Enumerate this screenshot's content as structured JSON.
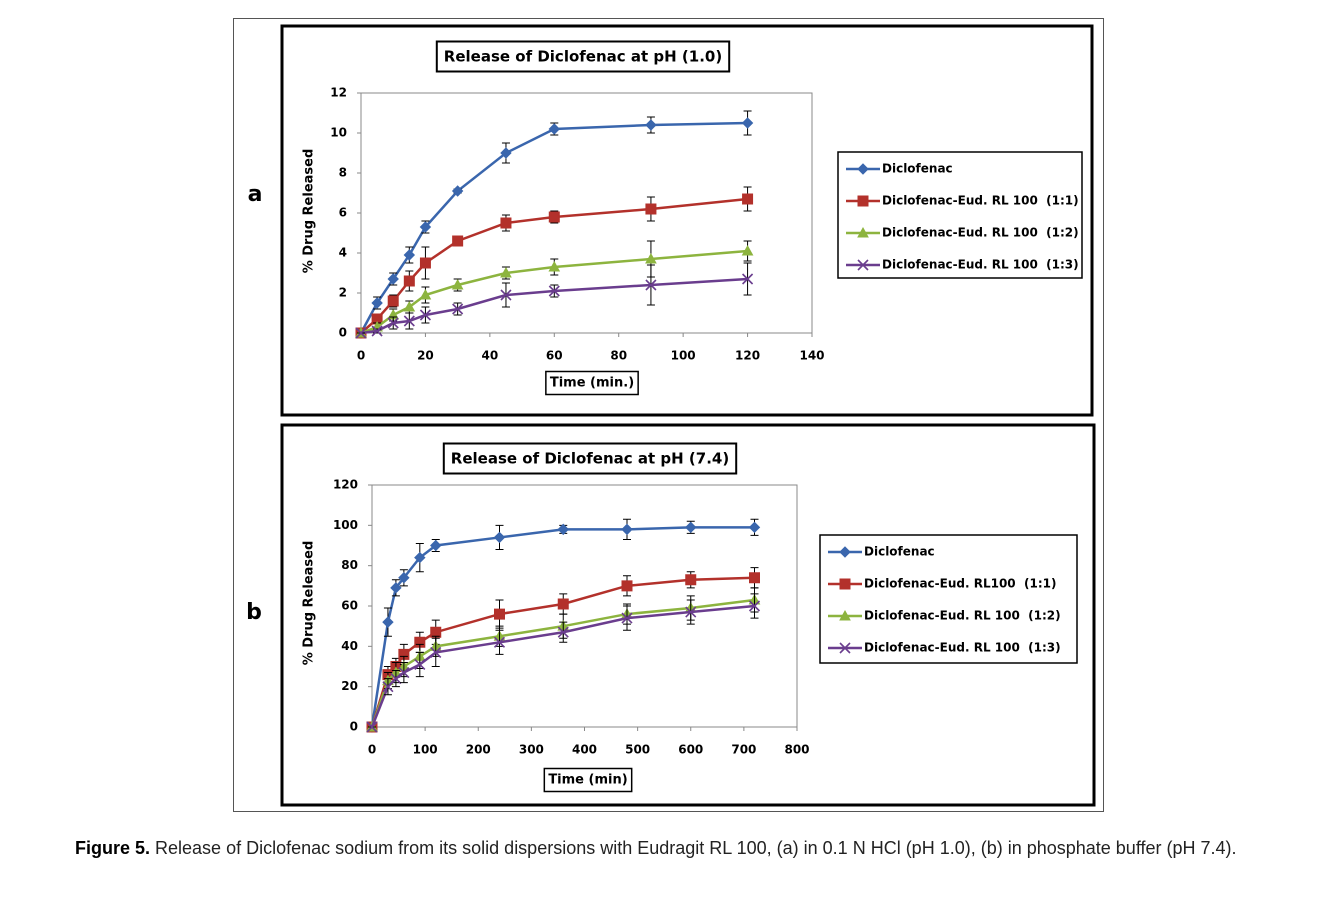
{
  "chart_data": [
    {
      "type": "line",
      "label": "a",
      "title": "Release of Diclofenac at pH (1.0)",
      "xlabel": "Time (min.)",
      "ylabel": "% Drug Released",
      "x": [
        0,
        5,
        10,
        15,
        20,
        30,
        45,
        60,
        90,
        120
      ],
      "xlim": [
        0,
        140
      ],
      "xticks": [
        0,
        20,
        40,
        60,
        80,
        100,
        120,
        140
      ],
      "ylim": [
        0,
        12
      ],
      "yticks": [
        0,
        2,
        4,
        6,
        8,
        10,
        12
      ],
      "grid": false,
      "series": [
        {
          "name": "Diclofenac",
          "color": "#3a66ad",
          "marker": "diamond",
          "values": [
            0,
            1.5,
            2.7,
            3.9,
            5.3,
            7.1,
            9.0,
            10.2,
            10.4,
            10.5
          ],
          "errors": [
            0,
            0.3,
            0.3,
            0.4,
            0.3,
            0.1,
            0.5,
            0.3,
            0.4,
            0.6
          ]
        },
        {
          "name": "Diclofenac-Eud. RL 100  (1:1)",
          "color": "#b3312b",
          "marker": "square",
          "values": [
            0,
            0.7,
            1.6,
            2.6,
            3.5,
            4.6,
            5.5,
            5.8,
            6.2,
            6.7
          ],
          "errors": [
            0,
            0.2,
            0.3,
            0.5,
            0.8,
            0.2,
            0.4,
            0.3,
            0.6,
            0.6
          ]
        },
        {
          "name": "Diclofenac-Eud. RL 100  (1:2)",
          "color": "#8db43f",
          "marker": "triangle",
          "values": [
            0,
            0.3,
            0.9,
            1.3,
            1.9,
            2.4,
            3.0,
            3.3,
            3.7,
            4.1
          ],
          "errors": [
            0,
            0.2,
            0.3,
            0.3,
            0.4,
            0.3,
            0.3,
            0.4,
            0.9,
            0.5
          ]
        },
        {
          "name": "Diclofenac-Eud. RL 100  (1:3)",
          "color": "#6a3d8e",
          "marker": "x",
          "values": [
            0,
            0.1,
            0.5,
            0.6,
            0.9,
            1.2,
            1.9,
            2.1,
            2.4,
            2.7
          ],
          "errors": [
            0,
            0.1,
            0.3,
            0.4,
            0.4,
            0.3,
            0.6,
            0.3,
            1.0,
            0.8
          ]
        }
      ]
    },
    {
      "type": "line",
      "label": "b",
      "title": "Release of Diclofenac at pH (7.4)",
      "xlabel": "Time (min)",
      "ylabel": "% Drug Released",
      "x": [
        0,
        30,
        45,
        60,
        90,
        120,
        240,
        360,
        480,
        600,
        720
      ],
      "xlim": [
        0,
        800
      ],
      "xticks": [
        0,
        100,
        200,
        300,
        400,
        500,
        600,
        700,
        800
      ],
      "ylim": [
        0,
        120
      ],
      "yticks": [
        0,
        20,
        40,
        60,
        80,
        100,
        120
      ],
      "grid": false,
      "series": [
        {
          "name": "Diclofenac",
          "color": "#3a66ad",
          "marker": "diamond",
          "values": [
            0,
            52,
            69,
            74,
            84,
            90,
            94,
            98,
            98,
            99,
            99
          ],
          "errors": [
            0,
            7,
            4,
            4,
            7,
            3,
            6,
            2,
            5,
            3,
            4
          ]
        },
        {
          "name": "Diclofenac-Eud. RL100  (1:1)",
          "color": "#b3312b",
          "marker": "square",
          "values": [
            0,
            26,
            30,
            36,
            42,
            47,
            56,
            61,
            70,
            73,
            74
          ],
          "errors": [
            0,
            4,
            4,
            5,
            5,
            6,
            7,
            5,
            5,
            4,
            5
          ]
        },
        {
          "name": "Diclofenac-Eud. RL 100  (1:2)",
          "color": "#8db43f",
          "marker": "triangle",
          "values": [
            0,
            23,
            27,
            30,
            35,
            40,
            45,
            50,
            56,
            59,
            63
          ],
          "errors": [
            0,
            4,
            5,
            5,
            6,
            5,
            5,
            6,
            5,
            6,
            6
          ]
        },
        {
          "name": "Diclofenac-Eud. RL 100  (1:3)",
          "color": "#6a3d8e",
          "marker": "x",
          "values": [
            0,
            20,
            24,
            27,
            31,
            37,
            42,
            47,
            54,
            57,
            60
          ],
          "errors": [
            0,
            4,
            4,
            5,
            6,
            7,
            6,
            5,
            6,
            6,
            6
          ]
        }
      ]
    }
  ],
  "caption": {
    "label": "Figure 5.",
    "text": "Release of Diclofenac sodium from its solid dispersions with Eudragit RL 100, (a) in 0.1 N HCl (pH 1.0), (b) in phosphate buffer (pH 7.4)."
  }
}
